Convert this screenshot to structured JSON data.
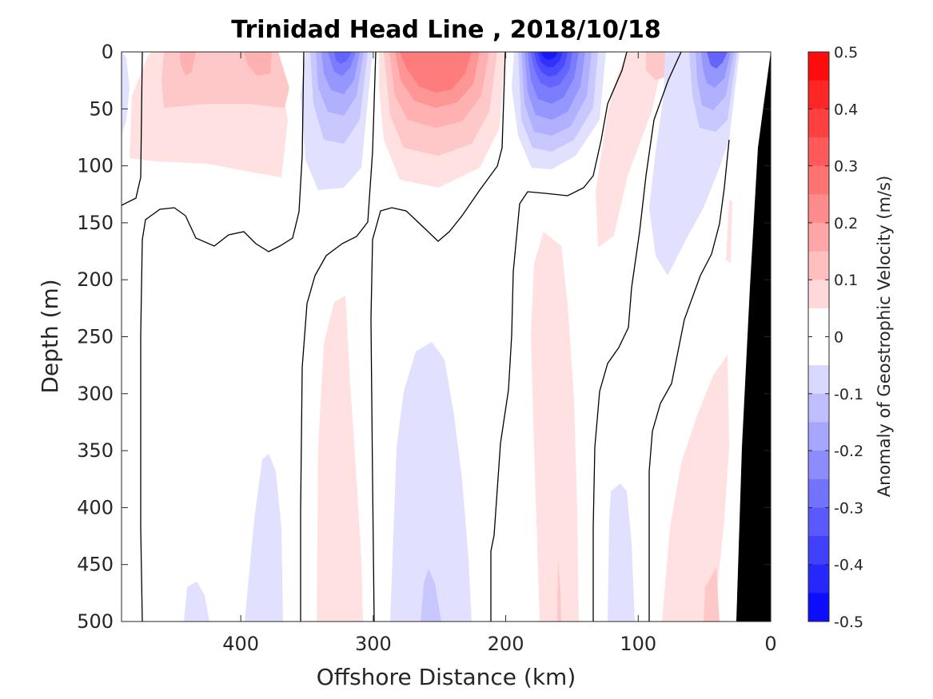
{
  "chart_data": {
    "type": "contour",
    "title": "Trinidad Head Line , 2018/10/18",
    "xlabel": "Offshore Distance (km)",
    "ylabel": "Depth (m)",
    "xlim": [
      490,
      0
    ],
    "ylim": [
      0,
      500
    ],
    "x_reversed": true,
    "y_reversed": true,
    "xticks": [
      400,
      300,
      200,
      100,
      0
    ],
    "yticks": [
      0,
      50,
      100,
      150,
      200,
      250,
      300,
      350,
      400,
      450,
      500
    ],
    "colorbar": {
      "label": "Anomaly of Geostrophic Velocity (m/s)",
      "range": [
        -0.5,
        0.5
      ],
      "levels_step": 0.05,
      "ticks": [
        0.5,
        0.4,
        0.3,
        0.2,
        0.1,
        0,
        -0.1,
        -0.2,
        -0.3,
        -0.4,
        -0.5
      ],
      "tick_labels": [
        "0.5",
        "0.4",
        "0.3",
        "0.2",
        "0.1",
        "0",
        "-0.1",
        "-0.2",
        "-0.3",
        "-0.4",
        "-0.5"
      ],
      "positive_color": "#ff0000",
      "negative_color": "#0000ff",
      "zero_color": "#ffffff"
    },
    "cores": [
      {
        "sign": "positive",
        "center_km": 400,
        "top_depth": 0,
        "peak_value": 0.15
      },
      {
        "sign": "negative",
        "center_km": 320,
        "top_depth": 0,
        "peak_value": -0.3
      },
      {
        "sign": "positive",
        "center_km": 260,
        "top_depth": 0,
        "peak_value": 0.25
      },
      {
        "sign": "negative",
        "center_km": 165,
        "top_depth": 0,
        "peak_value": -0.45
      },
      {
        "sign": "positive",
        "center_km": 105,
        "top_depth": 0,
        "peak_value": 0.1
      },
      {
        "sign": "negative",
        "center_km": 45,
        "top_depth": 0,
        "peak_value": -0.3
      },
      {
        "sign": "positive",
        "center_km": 335,
        "top_depth": 220,
        "peak_value": 0.05
      },
      {
        "sign": "negative",
        "center_km": 255,
        "top_depth": 250,
        "peak_value": -0.1
      },
      {
        "sign": "positive",
        "center_km": 170,
        "top_depth": 160,
        "peak_value": 0.1
      },
      {
        "sign": "negative",
        "center_km": 385,
        "top_depth": 350,
        "peak_value": -0.05
      },
      {
        "sign": "negative",
        "center_km": 110,
        "top_depth": 380,
        "peak_value": -0.05
      },
      {
        "sign": "positive",
        "center_km": 60,
        "top_depth": 270,
        "peak_value": 0.1
      }
    ],
    "bathymetry": {
      "color": "#000000",
      "description": "shelf / land mask at coast"
    }
  }
}
